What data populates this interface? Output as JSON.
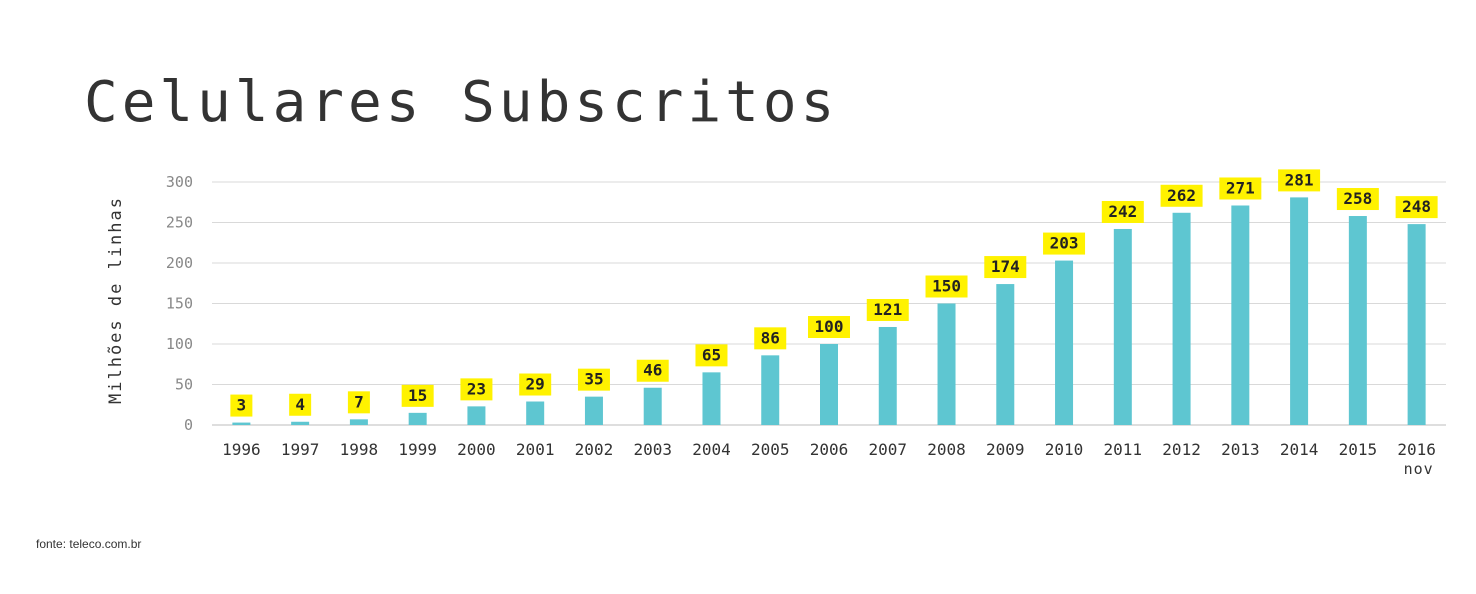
{
  "title": "Celulares Subscritos",
  "source": "fonte: teleco.com.br",
  "colors": {
    "bar": "#5ec6d1",
    "label_bg": "#fff200",
    "grid": "#d9d9d9",
    "axis_line": "#bdbdbd"
  },
  "chart_data": {
    "type": "bar",
    "title": "Celulares Subscritos",
    "ylabel": "Milhões de linhas",
    "xlabel": "",
    "ylim": [
      0,
      300
    ],
    "yticks": [
      "0",
      "50",
      "100",
      "150",
      "200",
      "250",
      "300"
    ],
    "grid": true,
    "categories": [
      "1996",
      "1997",
      "1998",
      "1999",
      "2000",
      "2001",
      "2002",
      "2003",
      "2004",
      "2005",
      "2006",
      "2007",
      "2008",
      "2009",
      "2010",
      "2011",
      "2012",
      "2013",
      "2014",
      "2015",
      "2016"
    ],
    "category_notes": [
      "",
      "",
      "",
      "",
      "",
      "",
      "",
      "",
      "",
      "",
      "",
      "",
      "",
      "",
      "",
      "",
      "",
      "",
      "",
      "",
      "nov"
    ],
    "values": [
      3,
      4,
      7,
      15,
      23,
      29,
      35,
      46,
      65,
      86,
      100,
      121,
      150,
      174,
      203,
      242,
      262,
      271,
      281,
      258,
      248
    ],
    "data_labels": [
      "3",
      "4",
      "7",
      "15",
      "23",
      "29",
      "35",
      "46",
      "65",
      "86",
      "100",
      "121",
      "150",
      "174",
      "203",
      "242",
      "262",
      "271",
      "281",
      "258",
      "248"
    ]
  }
}
